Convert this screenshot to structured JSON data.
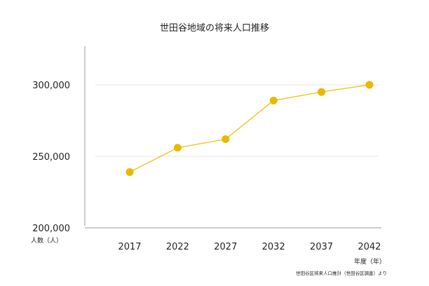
{
  "chart_data": {
    "type": "line",
    "title": "世田谷地域の将来人口推移",
    "x": [
      "2017",
      "2022",
      "2027",
      "2032",
      "2037",
      "2042"
    ],
    "series": [
      {
        "values": [
          239000,
          256000,
          262000,
          289000,
          295000,
          300000
        ]
      }
    ],
    "yticks": [
      "200,000",
      "250,000",
      "300,000"
    ],
    "ylim": [
      200000,
      300000
    ],
    "ylabel": "人数（人）",
    "xlabel": "年度（年）",
    "grid": true,
    "source": "世田谷区将来人口推計（世田谷区調査）より",
    "colors": {
      "line": "#f0c419",
      "marker": "#e9b800",
      "grid": "#e6e6e6",
      "axis": "#999999"
    }
  }
}
